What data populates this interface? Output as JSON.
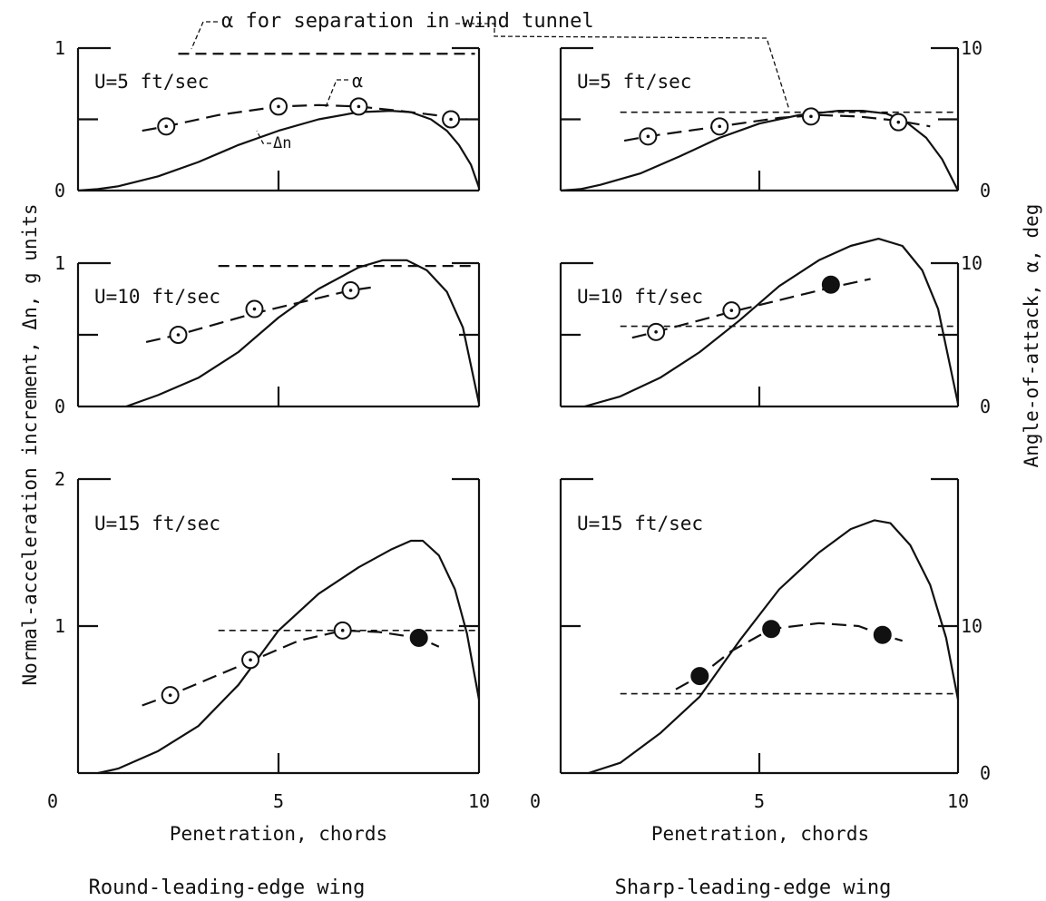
{
  "figure": {
    "ylabel_left": "Normal-acceleration increment, Δn, g units",
    "ylabel_right": "Angle-of-attack, α, deg",
    "annotation_separation": "α for separation in wind tunnel",
    "annotation_alpha": "α",
    "annotation_dn": "Δn",
    "xlabel": "Penetration, chords",
    "left_column_title": "Round-leading-edge wing",
    "right_column_title": "Sharp-leading-edge wing",
    "colors": {
      "ink": "#111111",
      "background": "#ffffff"
    }
  },
  "chart_data": [
    {
      "type": "line",
      "id": "p00",
      "label": "U=5 ft/sec",
      "wing": "Round-leading-edge wing",
      "xlim": [
        0,
        10
      ],
      "ylim_left": [
        0,
        1
      ],
      "ylim_right": [
        0,
        10
      ],
      "yticks_left": [
        "0",
        "1"
      ],
      "yticks_right": [],
      "xticks": [],
      "dn": {
        "x": [
          0,
          0.5,
          1,
          2,
          3,
          4,
          5,
          6,
          7,
          7.8,
          8.3,
          8.8,
          9.2,
          9.5,
          9.8,
          10
        ],
        "y": [
          0,
          0.01,
          0.03,
          0.1,
          0.2,
          0.32,
          0.42,
          0.5,
          0.55,
          0.56,
          0.55,
          0.5,
          0.42,
          0.32,
          0.18,
          0.02
        ]
      },
      "alpha_curve": {
        "x": [
          1.6,
          2.2,
          3.5,
          5,
          6,
          7,
          8,
          9.2,
          9.7
        ],
        "y": [
          4.2,
          4.5,
          5.3,
          5.9,
          6.0,
          5.9,
          5.6,
          5.2,
          5.0
        ]
      },
      "alpha_points": {
        "x": [
          2.2,
          5.0,
          7.0,
          9.3
        ],
        "y": [
          4.5,
          5.9,
          5.9,
          5.0
        ],
        "filled": [
          false,
          false,
          false,
          false
        ]
      },
      "separation_alpha": {
        "value": 9.6,
        "x": [
          2.5,
          9.9
        ]
      }
    },
    {
      "type": "line",
      "id": "p01",
      "label": "U=5 ft/sec",
      "wing": "Sharp-leading-edge wing",
      "xlim": [
        0,
        10
      ],
      "ylim_left": [
        0,
        1
      ],
      "ylim_right": [
        0,
        10
      ],
      "yticks_left": [],
      "yticks_right": [
        "0",
        "10"
      ],
      "xticks": [],
      "dn": {
        "x": [
          0,
          0.5,
          1,
          2,
          3,
          4,
          5,
          6,
          7,
          7.6,
          8.2,
          8.7,
          9.2,
          9.6,
          10
        ],
        "y": [
          0,
          0.01,
          0.04,
          0.12,
          0.24,
          0.37,
          0.47,
          0.53,
          0.56,
          0.56,
          0.54,
          0.48,
          0.37,
          0.22,
          0.0
        ]
      },
      "alpha_curve": {
        "x": [
          1.6,
          2.2,
          4.0,
          5.5,
          6.5,
          7.5,
          8.5,
          9.3
        ],
        "y": [
          3.5,
          3.8,
          4.5,
          5.1,
          5.3,
          5.2,
          4.9,
          4.5
        ]
      },
      "alpha_points": {
        "x": [
          2.2,
          4.0,
          6.3,
          8.5
        ],
        "y": [
          3.8,
          4.5,
          5.2,
          4.8
        ],
        "filled": [
          false,
          false,
          false,
          false
        ]
      },
      "separation_alpha": {
        "value": 5.5,
        "x": [
          1.5,
          10
        ]
      }
    },
    {
      "type": "line",
      "id": "p10",
      "label": "U=10 ft/sec",
      "wing": "Round-leading-edge wing",
      "xlim": [
        0,
        10
      ],
      "ylim_left": [
        0,
        1
      ],
      "ylim_right": [
        0,
        10
      ],
      "yticks_left": [
        "0",
        "1"
      ],
      "yticks_right": [],
      "xticks": [],
      "dn": {
        "x": [
          1.2,
          2,
          3,
          4,
          5,
          6,
          7,
          7.6,
          8.2,
          8.7,
          9.2,
          9.6,
          10
        ],
        "y": [
          0,
          0.08,
          0.2,
          0.38,
          0.62,
          0.82,
          0.97,
          1.02,
          1.02,
          0.95,
          0.8,
          0.55,
          0.02
        ]
      },
      "alpha_curve": {
        "x": [
          1.7,
          2.5,
          4.4,
          6.8,
          7.3
        ],
        "y": [
          4.5,
          5.0,
          6.5,
          8.1,
          8.3
        ]
      },
      "alpha_points": {
        "x": [
          2.5,
          4.4,
          6.8
        ],
        "y": [
          5.0,
          6.8,
          8.1
        ],
        "filled": [
          false,
          false,
          false
        ]
      },
      "separation_alpha": {
        "value": 9.8,
        "x": [
          3.5,
          9.9
        ]
      }
    },
    {
      "type": "line",
      "id": "p11",
      "label": "U=10 ft/sec",
      "wing": "Sharp-leading-edge wing",
      "xlim": [
        0,
        10
      ],
      "ylim_left": [
        0,
        1
      ],
      "ylim_right": [
        0,
        10
      ],
      "yticks_left": [],
      "yticks_right": [
        "0",
        "10"
      ],
      "xticks": [],
      "dn": {
        "x": [
          0.6,
          1.5,
          2.5,
          3.5,
          4.5,
          5.5,
          6.5,
          7.3,
          8.0,
          8.6,
          9.1,
          9.5,
          10
        ],
        "y": [
          0,
          0.07,
          0.2,
          0.38,
          0.6,
          0.84,
          1.02,
          1.12,
          1.17,
          1.12,
          0.95,
          0.68,
          0.02
        ]
      },
      "alpha_curve": {
        "x": [
          1.8,
          2.4,
          4.3,
          6.8,
          7.8
        ],
        "y": [
          4.8,
          5.2,
          6.6,
          8.3,
          8.9
        ]
      },
      "alpha_points": {
        "x": [
          2.4,
          4.3,
          6.8
        ],
        "y": [
          5.2,
          6.7,
          8.5
        ],
        "filled": [
          false,
          false,
          true
        ]
      },
      "separation_alpha": {
        "value": 5.6,
        "x": [
          1.5,
          10
        ]
      }
    },
    {
      "type": "line",
      "id": "p20",
      "label": "U=15 ft/sec",
      "wing": "Round-leading-edge wing",
      "xlim": [
        0,
        10
      ],
      "ylim_left": [
        0,
        2
      ],
      "ylim_right": [
        0,
        20
      ],
      "yticks_left": [
        "1",
        "2"
      ],
      "yticks_right": [],
      "xticks": [
        "0",
        "5",
        "10"
      ],
      "dn": {
        "x": [
          0.5,
          1,
          2,
          3,
          4,
          5,
          6,
          7,
          7.8,
          8.3,
          8.6,
          9.0,
          9.4,
          9.7,
          10
        ],
        "y": [
          0,
          0.03,
          0.15,
          0.32,
          0.6,
          0.97,
          1.22,
          1.4,
          1.52,
          1.58,
          1.58,
          1.48,
          1.25,
          0.95,
          0.5
        ]
      },
      "alpha_curve": {
        "x": [
          1.6,
          2.3,
          4.3,
          5.5,
          6.6,
          7.5,
          8.5,
          9.0
        ],
        "y": [
          4.6,
          5.3,
          7.6,
          9.0,
          9.7,
          9.6,
          9.2,
          8.6
        ]
      },
      "alpha_points": {
        "x": [
          2.3,
          4.3,
          6.6,
          8.5
        ],
        "y": [
          5.3,
          7.7,
          9.7,
          9.2
        ],
        "filled": [
          false,
          false,
          false,
          true
        ]
      },
      "separation_alpha": {
        "value": 9.7,
        "x": [
          3.5,
          10
        ]
      }
    },
    {
      "type": "line",
      "id": "p21",
      "label": "U=15 ft/sec",
      "wing": "Sharp-leading-edge wing",
      "xlim": [
        0,
        10
      ],
      "ylim_left": [
        0,
        2
      ],
      "ylim_right": [
        0,
        20
      ],
      "yticks_left": [],
      "yticks_right": [
        "0",
        "10"
      ],
      "xticks": [
        "0",
        "5",
        "10"
      ],
      "dn": {
        "x": [
          0.7,
          1.5,
          2.5,
          3.5,
          4.5,
          5.5,
          6.5,
          7.3,
          7.9,
          8.3,
          8.8,
          9.3,
          9.7,
          10
        ],
        "y": [
          0,
          0.07,
          0.27,
          0.52,
          0.9,
          1.25,
          1.5,
          1.66,
          1.72,
          1.7,
          1.55,
          1.28,
          0.92,
          0.5
        ]
      },
      "alpha_curve": {
        "x": [
          2.9,
          3.5,
          4.3,
          5.3,
          6.5,
          7.5,
          8.1,
          8.6
        ],
        "y": [
          5.7,
          6.6,
          8.3,
          9.8,
          10.2,
          10.0,
          9.4,
          9.0
        ]
      },
      "alpha_points": {
        "x": [
          3.5,
          5.3,
          8.1
        ],
        "y": [
          6.6,
          9.8,
          9.4
        ],
        "filled": [
          true,
          true,
          true
        ]
      },
      "separation_alpha": {
        "value": 5.4,
        "x": [
          1.5,
          10
        ]
      }
    }
  ]
}
